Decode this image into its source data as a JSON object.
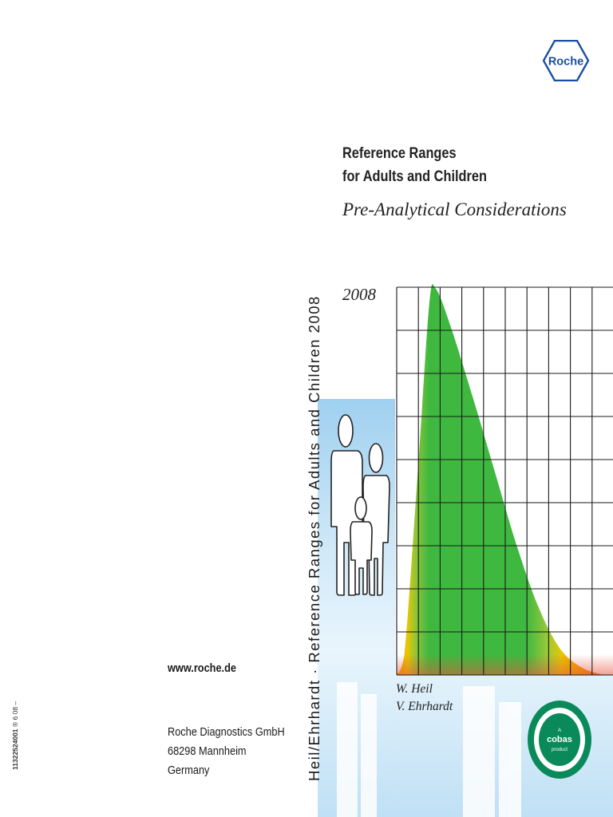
{
  "logo": {
    "text": "Roche",
    "color": "#1b4fa3"
  },
  "cover": {
    "title_line1": "Reference Ranges",
    "title_line2": "for Adults and Children",
    "subtitle": "Pre-Analytical Considerations",
    "year": "2008",
    "authors": [
      "W. Heil",
      "V. Ehrhardt"
    ]
  },
  "spine": {
    "text": "Heil/Ehrhardt · Reference Ranges for Adults and Children 2008"
  },
  "back": {
    "website": "www.roche.de",
    "address": [
      "Roche Diagnostics GmbH",
      "68298 Mannheim",
      "Germany"
    ],
    "catalog_number": "11322524001",
    "catalog_suffix": "® 6 08 –"
  },
  "badge": {
    "top": "A",
    "brand": "cobas",
    "bottom": "product",
    "color": "#0a8a5a"
  },
  "colors": {
    "curve_green": "#3fb83f",
    "panel_blue": "#bfe0f5",
    "grid": "#1a1a1a"
  },
  "icons": [
    "family-icon",
    "distribution-curve-icon"
  ],
  "chart_data": {
    "type": "area",
    "title": "",
    "xlabel": "",
    "ylabel": "",
    "grid": true,
    "series": [
      {
        "values": [
          0.0,
          0.05,
          0.55,
          0.96,
          1.0,
          0.9,
          0.72,
          0.53,
          0.34,
          0.18,
          0.07,
          0.02,
          0.0
        ]
      }
    ],
    "x": [
      0,
      0.35,
      1,
      1.5,
      1.8,
      2.5,
      3.5,
      4.5,
      5.5,
      6.5,
      7.5,
      8.5,
      9.5
    ]
  }
}
